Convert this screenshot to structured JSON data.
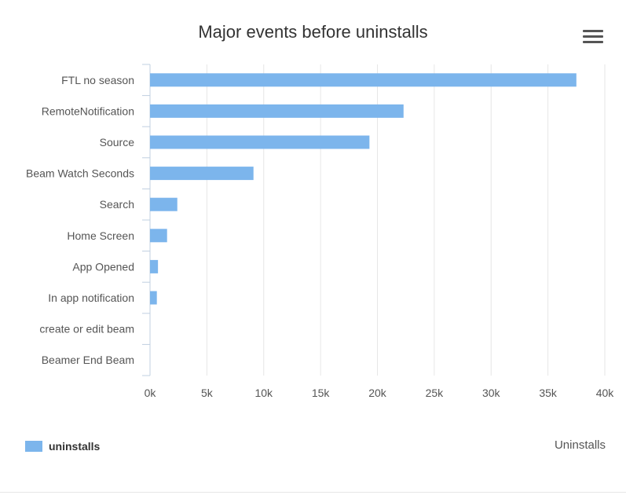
{
  "chart_data": {
    "type": "bar",
    "orientation": "horizontal",
    "title": "Major events before uninstalls",
    "xlabel": "Uninstalls",
    "ylabel": "",
    "categories": [
      "FTL no season",
      "RemoteNotification",
      "Source",
      "Beam Watch Seconds",
      "Search",
      "Home Screen",
      "App Opened",
      "In app notification",
      "create or edit beam",
      "Beamer End Beam"
    ],
    "series": [
      {
        "name": "uninstalls",
        "values": [
          37500,
          22300,
          19300,
          9100,
          2400,
          1500,
          700,
          600,
          0,
          0
        ],
        "color": "#7cb5ec"
      }
    ],
    "xlim": [
      0,
      40000
    ],
    "xticks": [
      0,
      5000,
      10000,
      15000,
      20000,
      25000,
      30000,
      35000,
      40000
    ],
    "xtick_labels": [
      "0k",
      "5k",
      "10k",
      "15k",
      "20k",
      "25k",
      "30k",
      "35k",
      "40k"
    ],
    "grid": true,
    "legend": "bottom-left"
  },
  "menu": {
    "icon": "hamburger-menu-icon"
  }
}
